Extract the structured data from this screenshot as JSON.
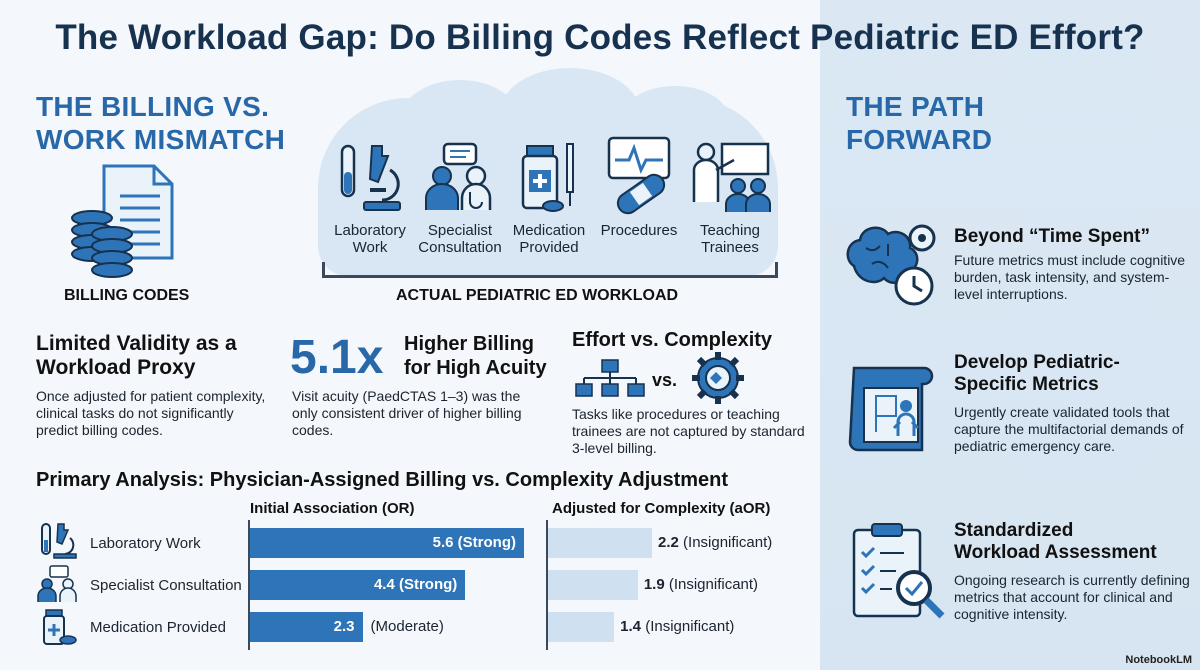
{
  "title": "The Workload Gap: Do Billing Codes Reflect Pediatric ED Effort?",
  "mismatch": {
    "title_line1": "THE BILLING VS.",
    "title_line2": "WORK MISMATCH",
    "billing_caption": "BILLING CODES",
    "workload_caption": "ACTUAL PEDIATRIC ED WORKLOAD",
    "workload_items": [
      {
        "line1": "Laboratory",
        "line2": "Work",
        "icon": "microscope-icon"
      },
      {
        "line1": "Specialist",
        "line2": "Consultation",
        "icon": "consultation-icon"
      },
      {
        "line1": "Medication",
        "line2": "Provided",
        "icon": "medication-icon"
      },
      {
        "line1": "Procedures",
        "line2": "",
        "icon": "bandage-icon"
      },
      {
        "line1": "Teaching",
        "line2": "Trainees",
        "icon": "teaching-icon"
      }
    ]
  },
  "findings": {
    "validity": {
      "heading_line1": "Limited Validity as a",
      "heading_line2": "Workload Proxy",
      "text": "Once adjusted for patient complexity, clinical tasks do not significantly predict billing codes."
    },
    "acuity": {
      "number": "5.1x",
      "heading_line1": "Higher Billing",
      "heading_line2": "for High Acuity",
      "text": "Visit acuity (PaedCTAS 1–3) was the only consistent driver of higher billing codes."
    },
    "effort": {
      "heading": "Effort vs. Complexity",
      "vs": "vs.",
      "text": "Tasks like procedures or teaching trainees are not captured by standard 3-level billing."
    }
  },
  "analysis": {
    "title": "Primary Analysis: Physician-Assigned Billing vs. Complexity Adjustment",
    "col_initial": "Initial Association (OR)",
    "col_adjusted": "Adjusted for Complexity (aOR)",
    "rows": [
      {
        "label": "Laboratory Work",
        "or": 5.6,
        "or_text": "5.6 (Strong)",
        "or_note": "",
        "aor": 2.2,
        "aor_value": "2.2",
        "aor_note": "(Insignificant)"
      },
      {
        "label": "Specialist Consultation",
        "or": 4.4,
        "or_text": "4.4 (Strong)",
        "or_note": "",
        "aor": 1.9,
        "aor_value": "1.9",
        "aor_note": "(Insignificant)"
      },
      {
        "label": "Medication Provided",
        "or": 2.3,
        "or_text": "2.3",
        "or_note": "(Moderate)",
        "aor": 1.4,
        "aor_value": "1.4",
        "aor_note": "(Insignificant)"
      }
    ]
  },
  "path": {
    "title_line1": "THE PATH",
    "title_line2": "FORWARD",
    "items": [
      {
        "heading_line1": "Beyond “Time Spent”",
        "heading_line2": "",
        "text": "Future metrics must include cognitive burden, task intensity, and system-level interruptions."
      },
      {
        "heading_line1": "Develop Pediatric-",
        "heading_line2": "Specific Metrics",
        "text": "Urgently create validated tools that capture the multifactorial demands of pediatric emergency care."
      },
      {
        "heading_line1": "Standardized",
        "heading_line2": "Workload Assessment",
        "text": "Ongoing research is currently defining metrics that account for clinical and cognitive intensity."
      }
    ]
  },
  "brand": "NotebookLM",
  "colors": {
    "accent": "#2868a8",
    "bar": "#2e74b8",
    "bar_light": "#cfe0f0",
    "panel": "#dbe8f4"
  }
}
